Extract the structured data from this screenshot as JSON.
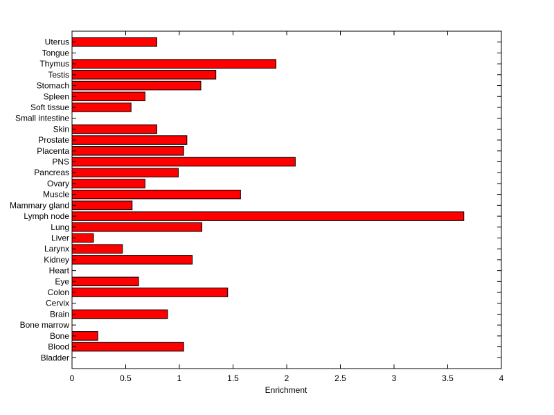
{
  "chart_data": {
    "type": "bar",
    "orientation": "horizontal",
    "title": "",
    "xlabel": "Enrichment",
    "ylabel": "",
    "xlim": [
      0,
      4
    ],
    "xticks": [
      0,
      0.5,
      1,
      1.5,
      2,
      2.5,
      3,
      3.5,
      4
    ],
    "xtick_labels": [
      "0",
      "0.5",
      "1",
      "1.5",
      "2",
      "2.5",
      "3",
      "3.5",
      "4"
    ],
    "grid": false,
    "legend": "none",
    "bar_color": "#ff0000",
    "bar_edge_color": "#000000",
    "categories": [
      "Bladder",
      "Blood",
      "Bone",
      "Bone marrow",
      "Brain",
      "Cervix",
      "Colon",
      "Eye",
      "Heart",
      "Kidney",
      "Larynx",
      "Liver",
      "Lung",
      "Lymph node",
      "Mammary gland",
      "Muscle",
      "Ovary",
      "Pancreas",
      "PNS",
      "Placenta",
      "Prostate",
      "Skin",
      "Small intestine",
      "Soft tissue",
      "Spleen",
      "Stomach",
      "Testis",
      "Thymus",
      "Tongue",
      "Uterus"
    ],
    "values": [
      0,
      1.04,
      0.24,
      0,
      0.89,
      0,
      1.45,
      0.62,
      0,
      1.12,
      0.47,
      0.2,
      1.21,
      3.65,
      0.56,
      1.57,
      0.68,
      0.99,
      2.08,
      1.04,
      1.07,
      0.79,
      0,
      0.55,
      0.68,
      1.2,
      1.34,
      1.9,
      0,
      0.79
    ]
  }
}
